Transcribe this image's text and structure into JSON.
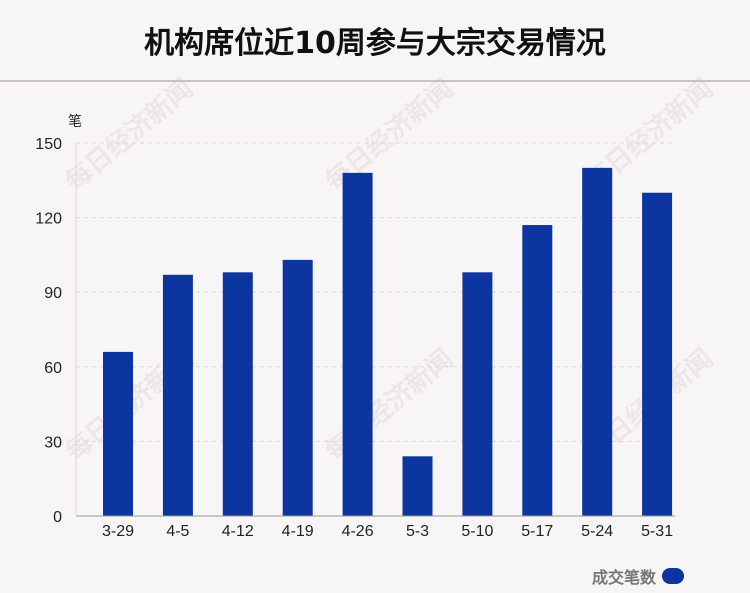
{
  "title": "机构席位近10周参与大宗交易情况",
  "watermark_text": "每日经济新闻",
  "chart_data": {
    "type": "bar",
    "title": "机构席位近10周参与大宗交易情况",
    "ylabel": "笔",
    "xlabel": "",
    "categories": [
      "3-29",
      "4-5",
      "4-12",
      "4-19",
      "4-26",
      "5-3",
      "5-10",
      "5-17",
      "5-24",
      "5-31"
    ],
    "series": [
      {
        "name": "成交笔数",
        "values": [
          66,
          97,
          98,
          103,
          138,
          24,
          98,
          117,
          140,
          130
        ],
        "color": "#0d35a0"
      }
    ],
    "ylim": [
      0,
      150
    ],
    "yticks": [
      0,
      30,
      60,
      90,
      120,
      150
    ],
    "grid": true,
    "legend": "bottom-right"
  },
  "colors": {
    "bar": "#0d35a0",
    "grid": "#dcd8da",
    "axis": "#999999"
  }
}
